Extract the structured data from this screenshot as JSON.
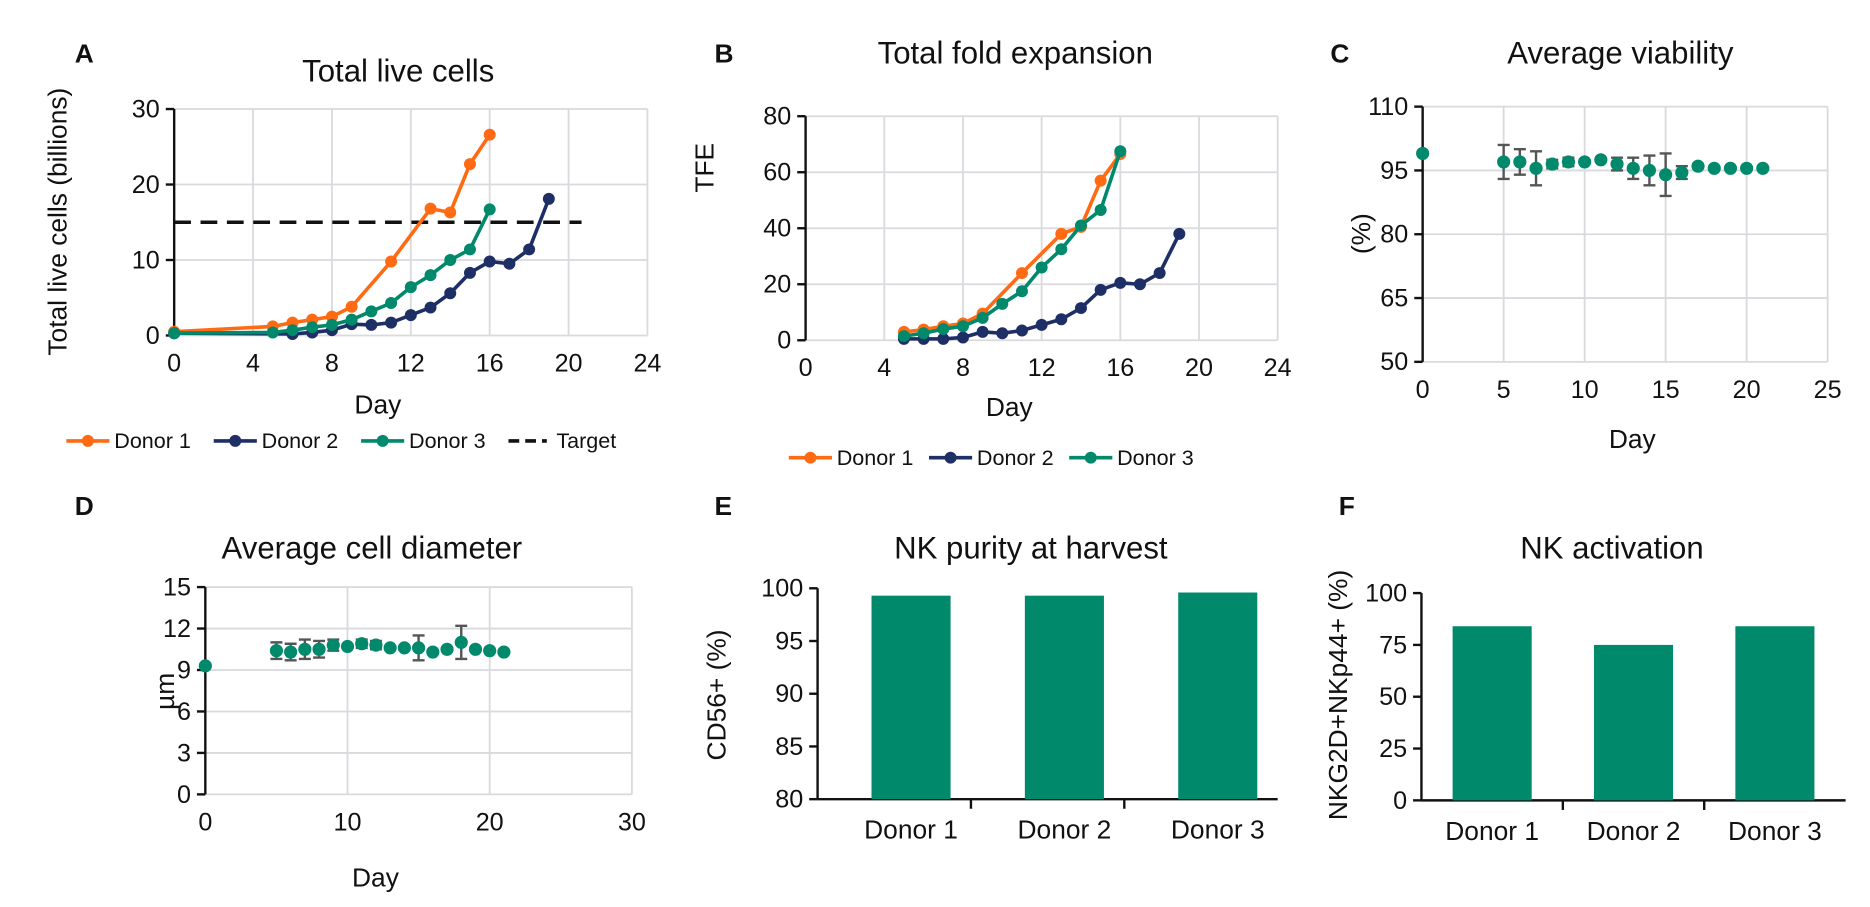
{
  "colors": {
    "donor1": "#ff6a13",
    "donor2": "#1e2f66",
    "donor3": "#00896b",
    "target": "#111111",
    "errorbar": "#555555",
    "bar": "#00896b"
  },
  "chart_data": [
    {
      "panel": "A",
      "type": "line",
      "title": "Total live cells",
      "xlabel": "Day",
      "ylabel": "Total live cells (billions)",
      "xlim": [
        0,
        24
      ],
      "ylim": [
        0,
        30
      ],
      "xticks": [
        0,
        4,
        8,
        12,
        16,
        20,
        24
      ],
      "yticks": [
        0,
        10,
        20,
        30
      ],
      "grid": true,
      "legend": "bottom",
      "series": [
        {
          "name": "Donor 1",
          "x": [
            0,
            5,
            6,
            7,
            8,
            9,
            11,
            13,
            14,
            15,
            16
          ],
          "y": [
            0.5,
            1.2,
            1.7,
            2.1,
            2.5,
            3.8,
            9.8,
            16.8,
            16.3,
            22.7,
            26.6
          ]
        },
        {
          "name": "Donor 2",
          "x": [
            0,
            6,
            7,
            8,
            9,
            10,
            11,
            12,
            13,
            14,
            15,
            16,
            17,
            18,
            19
          ],
          "y": [
            0.3,
            0.2,
            0.4,
            0.7,
            1.5,
            1.4,
            1.7,
            2.7,
            3.7,
            5.6,
            8.3,
            9.8,
            9.5,
            11.4,
            18.1
          ]
        },
        {
          "name": "Donor 3",
          "x": [
            0,
            5,
            6,
            7,
            8,
            9,
            10,
            11,
            12,
            13,
            14,
            15,
            16
          ],
          "y": [
            0.3,
            0.4,
            0.7,
            1.1,
            1.4,
            2.1,
            3.2,
            4.3,
            6.4,
            8.0,
            10.0,
            11.4,
            16.7
          ]
        }
      ],
      "target": {
        "name": "Target",
        "y": 15
      }
    },
    {
      "panel": "B",
      "type": "line",
      "title": "Total fold expansion",
      "xlabel": "Day",
      "ylabel": "TFE",
      "xlim": [
        0,
        24
      ],
      "ylim": [
        0,
        80
      ],
      "xticks": [
        0,
        4,
        8,
        12,
        16,
        20,
        24
      ],
      "yticks": [
        0,
        20,
        40,
        60,
        80
      ],
      "grid": true,
      "legend": "bottom",
      "series": [
        {
          "name": "Donor 1",
          "x": [
            5,
            6,
            7,
            8,
            9,
            11,
            13,
            14,
            15,
            16
          ],
          "y": [
            3,
            3.8,
            5,
            6,
            9.5,
            24,
            38,
            40.5,
            57,
            66.5
          ]
        },
        {
          "name": "Donor 2",
          "x": [
            5,
            6,
            7,
            8,
            9,
            10,
            11,
            12,
            13,
            14,
            15,
            16,
            17,
            18,
            19
          ],
          "y": [
            0.5,
            0.5,
            0.5,
            1,
            3,
            2.5,
            3.5,
            5.5,
            7.5,
            11.5,
            18,
            20.5,
            20,
            24,
            38
          ]
        },
        {
          "name": "Donor 3",
          "x": [
            5,
            6,
            7,
            8,
            9,
            10,
            11,
            12,
            13,
            14,
            15,
            16
          ],
          "y": [
            1.5,
            2.5,
            4,
            5,
            8,
            13,
            17.5,
            26,
            32.5,
            41,
            46.5,
            67.5
          ]
        }
      ]
    },
    {
      "panel": "C",
      "type": "scatter",
      "title": "Average viability",
      "xlabel": "Day",
      "ylabel": "(%)",
      "xlim": [
        0,
        25
      ],
      "ylim": [
        50,
        110
      ],
      "xticks": [
        0,
        5,
        10,
        15,
        20,
        25
      ],
      "yticks": [
        50,
        65,
        80,
        95,
        110
      ],
      "grid": true,
      "x": [
        0,
        5,
        6,
        7,
        8,
        9,
        10,
        11,
        12,
        13,
        14,
        15,
        16,
        17,
        18,
        19,
        20,
        21
      ],
      "y": [
        99,
        97,
        97,
        95.5,
        96.5,
        97,
        97,
        97.5,
        96.5,
        95.5,
        95,
        94,
        94.5,
        96,
        95.5,
        95.5,
        95.5,
        95.5
      ],
      "err": [
        0,
        4,
        3,
        4,
        1,
        1,
        0,
        0,
        1.5,
        2.5,
        3.5,
        5,
        1.5,
        0,
        0,
        0,
        0,
        0
      ]
    },
    {
      "panel": "D",
      "type": "scatter",
      "title": "Average cell diameter",
      "xlabel": "Day",
      "ylabel": "µm",
      "xlim": [
        0,
        30
      ],
      "ylim": [
        0,
        15
      ],
      "xticks": [
        0,
        10,
        20,
        30
      ],
      "yticks": [
        0,
        3,
        6,
        9,
        12,
        15
      ],
      "grid": true,
      "x": [
        0,
        5,
        6,
        7,
        8,
        9,
        10,
        11,
        12,
        13,
        14,
        15,
        16,
        17,
        18,
        19,
        20,
        21
      ],
      "y": [
        9.3,
        10.4,
        10.3,
        10.5,
        10.5,
        10.8,
        10.7,
        10.9,
        10.8,
        10.6,
        10.6,
        10.6,
        10.3,
        10.5,
        11.0,
        10.5,
        10.4,
        10.3
      ],
      "err": [
        0,
        0.6,
        0.6,
        0.7,
        0.6,
        0.4,
        0,
        0.3,
        0.3,
        0,
        0,
        0.9,
        0,
        0,
        1.2,
        0,
        0,
        0
      ]
    },
    {
      "panel": "E",
      "type": "bar",
      "title": "NK purity at harvest",
      "xlabel": "",
      "ylabel": "CD56+ (%)",
      "categories": [
        "Donor 1",
        "Donor 2",
        "Donor 3"
      ],
      "values": [
        99.3,
        99.3,
        99.6
      ],
      "ylim": [
        80,
        100
      ],
      "yticks": [
        80,
        85,
        90,
        95,
        100
      ],
      "grid": false
    },
    {
      "panel": "F",
      "type": "bar",
      "title": "NK activation",
      "xlabel": "",
      "ylabel": "NKG2D+NKp44+ (%)",
      "categories": [
        "Donor 1",
        "Donor 2",
        "Donor 3"
      ],
      "values": [
        84,
        75,
        84
      ],
      "ylim": [
        0,
        100
      ],
      "yticks": [
        0,
        25,
        50,
        75,
        100
      ],
      "grid": false
    }
  ]
}
